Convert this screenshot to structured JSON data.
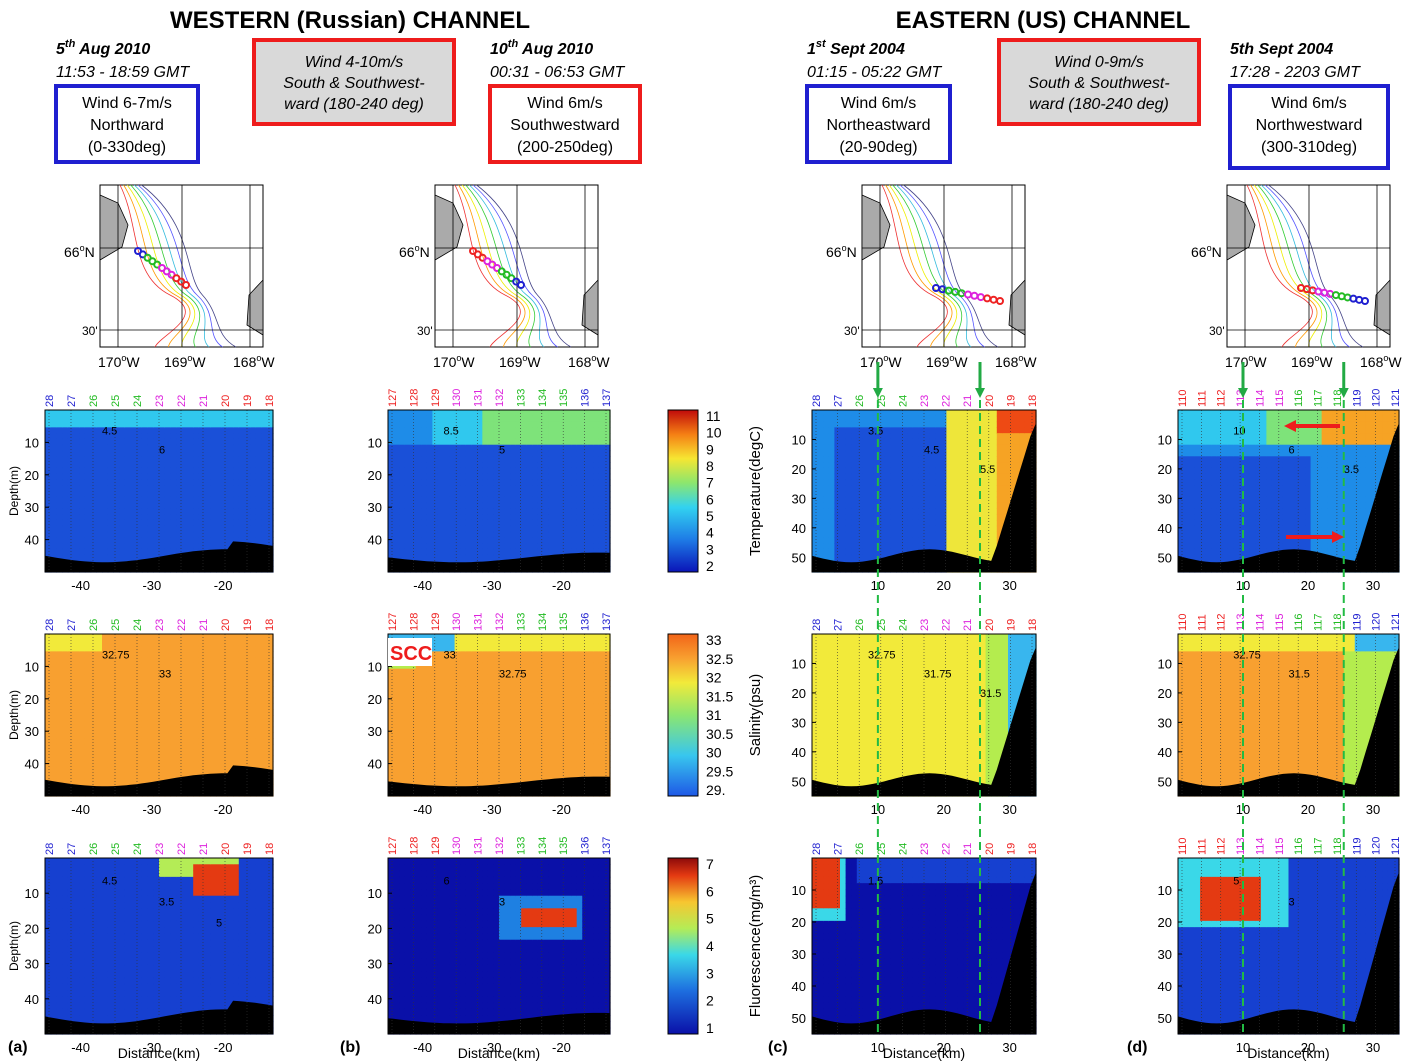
{
  "headers": {
    "western": "WESTERN (Russian) CHANNEL",
    "eastern": "EASTERN (US) CHANNEL"
  },
  "panels": [
    {
      "id": "a",
      "date_main": "5",
      "date_sup": "th",
      "date_rest": " Aug 2010",
      "time": "11:53 - 18:59 GMT",
      "wind": [
        "Wind 6-7m/s",
        "Northward",
        "(0-330deg)"
      ],
      "wind_color": "#1f1fd0",
      "stations": [
        {
          "label": "28",
          "color": "#1f1fd0"
        },
        {
          "label": "27",
          "color": "#1f1fd0"
        },
        {
          "label": "26",
          "color": "#22bb22"
        },
        {
          "label": "25",
          "color": "#22bb22"
        },
        {
          "label": "24",
          "color": "#22bb22"
        },
        {
          "label": "23",
          "color": "#dd22dd"
        },
        {
          "label": "22",
          "color": "#dd22dd"
        },
        {
          "label": "21",
          "color": "#dd22dd"
        },
        {
          "label": "20",
          "color": "#ee2222"
        },
        {
          "label": "19",
          "color": "#ee2222"
        },
        {
          "label": "18",
          "color": "#ee2222"
        }
      ],
      "xticks": [
        "-40",
        "-30",
        "-20"
      ],
      "xlabel": "Distance(km)",
      "letter": "(a)",
      "sections": [
        {
          "ylabel": "Depth(m)",
          "yticks": [
            "10",
            "20",
            "30",
            "40"
          ],
          "contour_labels": [
            "4.5",
            "6"
          ]
        },
        {
          "ylabel": "Depth(m)",
          "yticks": [
            "10",
            "20",
            "30",
            "40"
          ],
          "contour_labels": [
            "32.75",
            "33"
          ]
        },
        {
          "ylabel": "Depth(m)",
          "yticks": [
            "10",
            "20",
            "30",
            "40"
          ],
          "contour_labels": [
            "4.5",
            "3.5",
            "5"
          ]
        }
      ]
    },
    {
      "id": "b",
      "date_main": "10",
      "date_sup": "th",
      "date_rest": " Aug 2010",
      "time": "00:31 - 06:53 GMT",
      "wind": [
        "Wind 6m/s",
        "Southwestward",
        "(200-250deg)"
      ],
      "wind_color": "#ee1c1c",
      "stations": [
        {
          "label": "127",
          "color": "#ee2222"
        },
        {
          "label": "128",
          "color": "#ee2222"
        },
        {
          "label": "129",
          "color": "#ee2222"
        },
        {
          "label": "130",
          "color": "#dd22dd"
        },
        {
          "label": "131",
          "color": "#dd22dd"
        },
        {
          "label": "132",
          "color": "#dd22dd"
        },
        {
          "label": "133",
          "color": "#22bb22"
        },
        {
          "label": "134",
          "color": "#22bb22"
        },
        {
          "label": "135",
          "color": "#22bb22"
        },
        {
          "label": "136",
          "color": "#1f1fd0"
        },
        {
          "label": "137",
          "color": "#1f1fd0"
        }
      ],
      "xticks": [
        "-40",
        "-30",
        "-20"
      ],
      "xlabel": "Distance(km)",
      "letter": "(b)",
      "scc_label": "SCC",
      "sections": [
        {
          "ylabel": "",
          "yticks": [
            "10",
            "20",
            "30",
            "40"
          ],
          "contour_labels": [
            "8.5",
            "5"
          ]
        },
        {
          "ylabel": "",
          "yticks": [
            "10",
            "20",
            "30",
            "40"
          ],
          "contour_labels": [
            "33",
            "32.75"
          ]
        },
        {
          "ylabel": "",
          "yticks": [
            "10",
            "20",
            "30",
            "40"
          ],
          "contour_labels": [
            "6",
            "3"
          ]
        }
      ]
    },
    {
      "id": "c",
      "date_main": "1",
      "date_sup": "st",
      "date_rest": " Sept 2004",
      "time": "01:15 - 05:22 GMT",
      "wind": [
        "Wind 6m/s",
        "Northeastward",
        "(20-90deg)"
      ],
      "wind_color": "#1f1fd0",
      "stations": [
        {
          "label": "28",
          "color": "#1f1fd0"
        },
        {
          "label": "27",
          "color": "#1f1fd0"
        },
        {
          "label": "26",
          "color": "#22bb22"
        },
        {
          "label": "25",
          "color": "#22bb22"
        },
        {
          "label": "24",
          "color": "#22bb22"
        },
        {
          "label": "23",
          "color": "#dd22dd"
        },
        {
          "label": "22",
          "color": "#dd22dd"
        },
        {
          "label": "21",
          "color": "#dd22dd"
        },
        {
          "label": "20",
          "color": "#ee2222"
        },
        {
          "label": "19",
          "color": "#ee2222"
        },
        {
          "label": "18",
          "color": "#ee2222"
        }
      ],
      "xticks": [
        "10",
        "20",
        "30"
      ],
      "xlabel": "Distance(km)",
      "letter": "(c)",
      "sections": [
        {
          "ylabel": "Temperature(degC)",
          "yticks": [
            "10",
            "20",
            "30",
            "40",
            "50"
          ],
          "contour_labels": [
            "3.5",
            "4.5",
            "5.5"
          ]
        },
        {
          "ylabel": "Salinity(psu)",
          "yticks": [
            "10",
            "20",
            "30",
            "40",
            "50"
          ],
          "contour_labels": [
            "32.75",
            "31.75",
            "31.5"
          ]
        },
        {
          "ylabel": "Fluorescence(mg/m³)",
          "yticks": [
            "10",
            "20",
            "30",
            "40",
            "50"
          ],
          "contour_labels": [
            "1.5"
          ]
        }
      ]
    },
    {
      "id": "d",
      "date_main": "5th Sept 2004",
      "date_sup": "",
      "date_rest": "",
      "time": "17:28 - 2203 GMT",
      "wind": [
        "Wind 6m/s",
        "Northwestward",
        "(300-310deg)"
      ],
      "wind_color": "#1f1fd0",
      "stations": [
        {
          "label": "110",
          "color": "#ee2222"
        },
        {
          "label": "111",
          "color": "#ee2222"
        },
        {
          "label": "112",
          "color": "#ee2222"
        },
        {
          "label": "113",
          "color": "#dd22dd"
        },
        {
          "label": "114",
          "color": "#dd22dd"
        },
        {
          "label": "115",
          "color": "#dd22dd"
        },
        {
          "label": "116",
          "color": "#22bb22"
        },
        {
          "label": "117",
          "color": "#22bb22"
        },
        {
          "label": "118",
          "color": "#22bb22"
        },
        {
          "label": "119",
          "color": "#1f1fd0"
        },
        {
          "label": "120",
          "color": "#1f1fd0"
        },
        {
          "label": "121",
          "color": "#1f1fd0"
        }
      ],
      "xticks": [
        "10",
        "20",
        "30"
      ],
      "xlabel": "Distance(km)",
      "letter": "(d)",
      "sections": [
        {
          "ylabel": "",
          "yticks": [
            "10",
            "20",
            "30",
            "40",
            "50"
          ],
          "contour_labels": [
            "10",
            "6",
            "3.5"
          ]
        },
        {
          "ylabel": "",
          "yticks": [
            "10",
            "20",
            "30",
            "40",
            "50"
          ],
          "contour_labels": [
            "32.75",
            "31.5"
          ]
        },
        {
          "ylabel": "",
          "yticks": [
            "10",
            "20",
            "30",
            "40",
            "50"
          ],
          "contour_labels": [
            "5",
            "3"
          ]
        }
      ]
    }
  ],
  "red_boxes": {
    "western": [
      "Wind 4-10m/s",
      "South & Southwest-",
      "ward (180-240 deg)"
    ],
    "eastern": [
      "Wind 0-9m/s",
      "South & Southwest-",
      "ward (180-240 deg)"
    ]
  },
  "maps": {
    "lat_label": "66",
    "lat_unit": "N",
    "lat_30": "30'",
    "lon_labels": [
      "170",
      "169",
      "168"
    ],
    "lon_unit": "W"
  },
  "colorbars": {
    "temperature": {
      "title": "Temperature(degC)",
      "ticks": [
        "11",
        "10",
        "9",
        "8",
        "7",
        "6",
        "5",
        "4",
        "3",
        "2"
      ]
    },
    "salinity": {
      "title": "Salinity(psu)",
      "ticks": [
        "33",
        "32.5",
        "32",
        "31.5",
        "31",
        "30.5",
        "30",
        "29.5",
        "29."
      ]
    },
    "fluorescence": {
      "title": "Fluorescence(mg/m³)",
      "ticks": [
        "7",
        "6",
        "5",
        "4",
        "3",
        "2",
        "1"
      ]
    }
  },
  "chart_data": {
    "type": "heatmap",
    "title": "",
    "x_unit": "Distance(km)",
    "y_unit": "Depth(m)",
    "variables": [
      "Temperature(degC)",
      "Salinity(psu)",
      "Fluorescence(mg/m³)"
    ],
    "panels": [
      {
        "id": "a",
        "xlim": [
          -45,
          -13
        ],
        "ylim": [
          0,
          50
        ],
        "temperature_range": [
          3,
          6
        ],
        "salinity_range": [
          32.5,
          33
        ],
        "fluorescence_max": 7
      },
      {
        "id": "b",
        "xlim": [
          -45,
          -13
        ],
        "ylim": [
          0,
          50
        ],
        "temperature_range": [
          2.5,
          8.5
        ],
        "salinity_range": [
          31,
          33
        ],
        "fluorescence_max": 7
      },
      {
        "id": "c",
        "xlim": [
          0,
          34
        ],
        "ylim": [
          0,
          55
        ],
        "temperature_range": [
          3,
          10.5
        ],
        "salinity_range": [
          29.5,
          32.75
        ],
        "fluorescence_max": 7
      },
      {
        "id": "d",
        "xlim": [
          0,
          34
        ],
        "ylim": [
          0,
          55
        ],
        "temperature_range": [
          2.5,
          10
        ],
        "salinity_range": [
          30.5,
          32.75
        ],
        "fluorescence_max": 7
      }
    ],
    "colorbar_ticks": {
      "temperature": [
        2,
        3,
        4,
        5,
        6,
        7,
        8,
        9,
        10,
        11
      ],
      "salinity": [
        29,
        29.5,
        30,
        30.5,
        31,
        31.5,
        32,
        32.5,
        33
      ],
      "fluorescence": [
        1,
        2,
        3,
        4,
        5,
        6,
        7
      ]
    }
  }
}
